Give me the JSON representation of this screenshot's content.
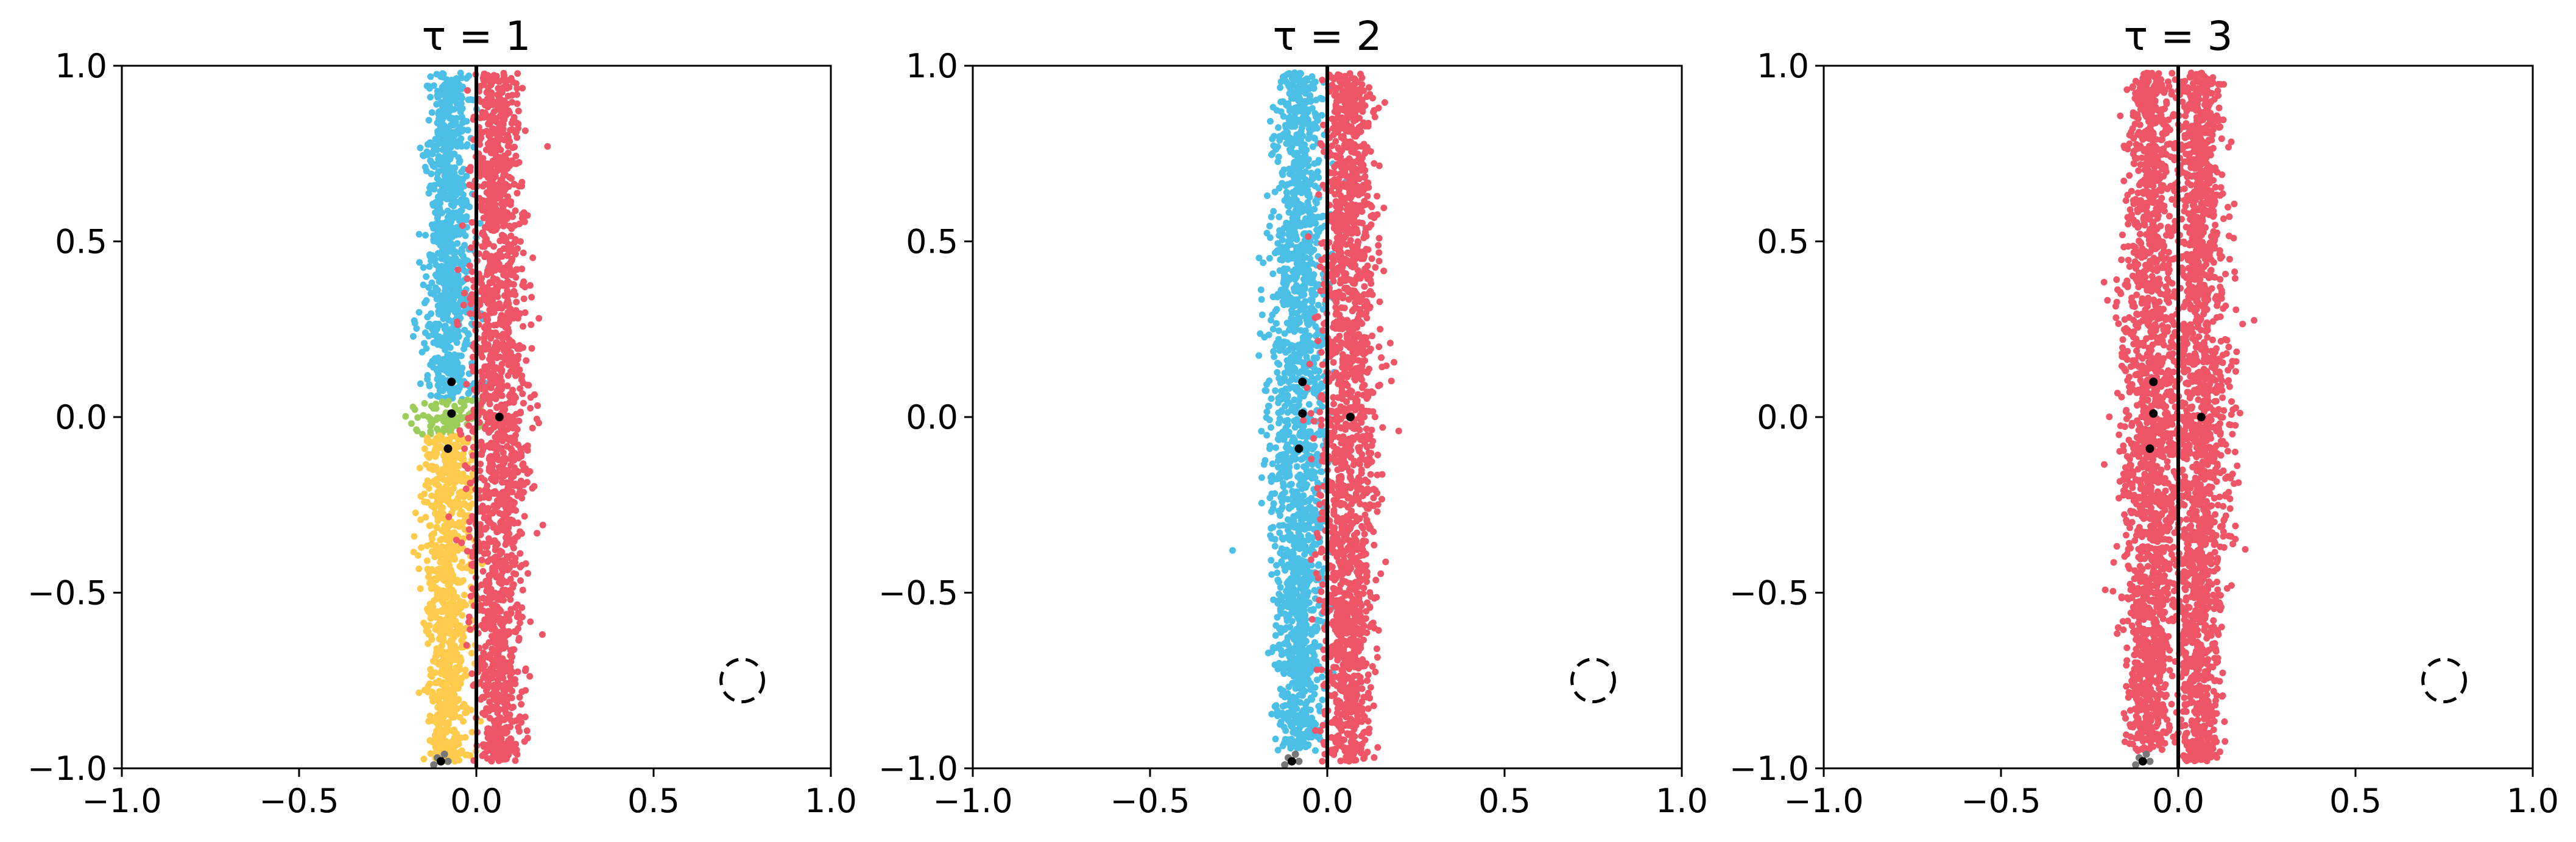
{
  "chart_data": [
    {
      "type": "scatter",
      "title": "τ = 1",
      "xlim": [
        -1.0,
        1.0
      ],
      "ylim": [
        -1.0,
        1.0
      ],
      "xticks": [
        "−1.0",
        "−0.5",
        "0.0",
        "0.5",
        "1.0"
      ],
      "yticks": [
        "−1.0",
        "−0.5",
        "0.0",
        "0.5",
        "1.0"
      ],
      "grid": false,
      "decision_line_x": 0.0,
      "cluster_regions": [
        {
          "color": "#4cbfe6",
          "x_center": -0.08,
          "x_spread": 0.04,
          "y_range": [
            0.05,
            0.98
          ]
        },
        {
          "color": "#9ccc5a",
          "x_center": -0.08,
          "x_spread": 0.05,
          "y_range": [
            -0.05,
            0.05
          ]
        },
        {
          "color": "#ffcb4c",
          "x_center": -0.08,
          "x_spread": 0.04,
          "y_range": [
            -0.98,
            -0.05
          ]
        },
        {
          "color": "#ee5566",
          "x_center": 0.06,
          "x_spread": 0.045,
          "y_range": [
            -0.98,
            0.98
          ]
        }
      ],
      "centers": [
        {
          "x": -0.07,
          "y": 0.1
        },
        {
          "x": -0.07,
          "y": 0.01
        },
        {
          "x": -0.08,
          "y": -0.09
        },
        {
          "x": 0.065,
          "y": 0.0
        }
      ],
      "gray_points": [
        {
          "x": -0.11,
          "y": -0.97
        },
        {
          "x": -0.09,
          "y": -0.96
        },
        {
          "x": -0.08,
          "y": -0.98
        },
        {
          "x": -0.12,
          "y": -0.99
        }
      ],
      "anchor_point": {
        "x": -0.1,
        "y": -0.98
      },
      "dashed_circle": {
        "x": 0.75,
        "y": -0.75,
        "r": 0.06
      }
    },
    {
      "type": "scatter",
      "title": "τ = 2",
      "xlim": [
        -1.0,
        1.0
      ],
      "ylim": [
        -1.0,
        1.0
      ],
      "xticks": [
        "−1.0",
        "−0.5",
        "0.0",
        "0.5",
        "1.0"
      ],
      "yticks": [
        "−1.0",
        "−0.5",
        "0.0",
        "0.5",
        "1.0"
      ],
      "grid": false,
      "decision_line_x": 0.0,
      "cluster_regions": [
        {
          "color": "#4cbfe6",
          "x_center": -0.08,
          "x_spread": 0.045,
          "y_range": [
            -0.95,
            0.98
          ]
        },
        {
          "color": "#ee5566",
          "x_center": 0.06,
          "x_spread": 0.045,
          "y_range": [
            -0.98,
            0.98
          ]
        }
      ],
      "centers": [
        {
          "x": -0.07,
          "y": 0.1
        },
        {
          "x": -0.07,
          "y": 0.01
        },
        {
          "x": -0.08,
          "y": -0.09
        },
        {
          "x": 0.065,
          "y": 0.0
        }
      ],
      "gray_points": [
        {
          "x": -0.11,
          "y": -0.97
        },
        {
          "x": -0.09,
          "y": -0.96
        },
        {
          "x": -0.08,
          "y": -0.98
        },
        {
          "x": -0.12,
          "y": -0.99
        }
      ],
      "anchor_point": {
        "x": -0.1,
        "y": -0.98
      },
      "dashed_circle": {
        "x": 0.75,
        "y": -0.75,
        "r": 0.06
      }
    },
    {
      "type": "scatter",
      "title": "τ = 3",
      "xlim": [
        -1.0,
        1.0
      ],
      "ylim": [
        -1.0,
        1.0
      ],
      "xticks": [
        "−1.0",
        "−0.5",
        "0.0",
        "0.5",
        "1.0"
      ],
      "yticks": [
        "−1.0",
        "−0.5",
        "0.0",
        "0.5",
        "1.0"
      ],
      "grid": false,
      "decision_line_x": 0.0,
      "cluster_regions": [
        {
          "color": "#ee5566",
          "x_center": -0.08,
          "x_spread": 0.045,
          "y_range": [
            -0.95,
            0.98
          ]
        },
        {
          "color": "#ee5566",
          "x_center": 0.06,
          "x_spread": 0.045,
          "y_range": [
            -0.98,
            0.98
          ]
        }
      ],
      "centers": [
        {
          "x": -0.07,
          "y": 0.1
        },
        {
          "x": -0.07,
          "y": 0.01
        },
        {
          "x": -0.08,
          "y": -0.09
        },
        {
          "x": 0.065,
          "y": 0.0
        }
      ],
      "gray_points": [
        {
          "x": -0.11,
          "y": -0.97
        },
        {
          "x": -0.09,
          "y": -0.96
        },
        {
          "x": -0.08,
          "y": -0.98
        },
        {
          "x": -0.12,
          "y": -0.99
        }
      ],
      "anchor_point": {
        "x": -0.1,
        "y": -0.98
      },
      "dashed_circle": {
        "x": 0.75,
        "y": -0.75,
        "r": 0.06
      }
    }
  ]
}
